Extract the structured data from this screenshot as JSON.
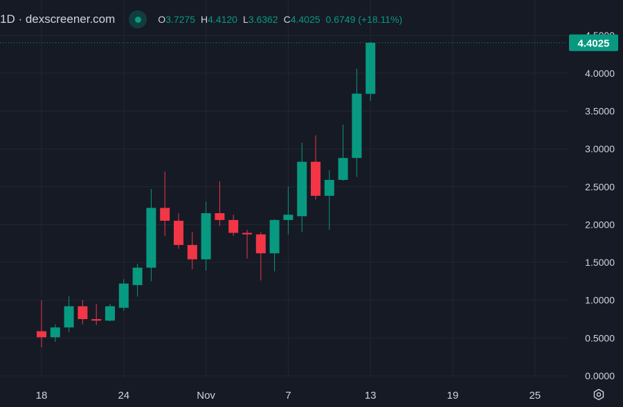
{
  "legend": {
    "title": "1D · dexscreener.com",
    "o_label": "O",
    "o_value": "3.7275",
    "h_label": "H",
    "h_value": "4.4120",
    "l_label": "L",
    "l_value": "3.6362",
    "c_label": "C",
    "c_value": "4.4025",
    "change": "0.6749 (+18.11%)"
  },
  "colors": {
    "background": "#161a25",
    "up": "#089981",
    "down": "#f23645",
    "grid": "#232733",
    "text": "#d1d4dc"
  },
  "chart_data": {
    "type": "candlestick",
    "x_ticks": [
      "18",
      "24",
      "Nov",
      "7",
      "13",
      "19",
      "25"
    ],
    "y_ticks": [
      "0.0000",
      "0.5000",
      "1.0000",
      "1.5000",
      "2.0000",
      "2.5000",
      "3.0000",
      "3.5000",
      "4.0000",
      "4.5000"
    ],
    "ylim": [
      0,
      4.5
    ],
    "last_price": "4.4025",
    "grid": true,
    "candles": [
      {
        "o": 0.59,
        "h": 1.0,
        "l": 0.38,
        "c": 0.51
      },
      {
        "o": 0.51,
        "h": 0.68,
        "l": 0.45,
        "c": 0.64
      },
      {
        "o": 0.64,
        "h": 1.05,
        "l": 0.58,
        "c": 0.92
      },
      {
        "o": 0.92,
        "h": 1.0,
        "l": 0.68,
        "c": 0.75
      },
      {
        "o": 0.75,
        "h": 0.95,
        "l": 0.67,
        "c": 0.73
      },
      {
        "o": 0.73,
        "h": 0.95,
        "l": 0.72,
        "c": 0.92
      },
      {
        "o": 0.9,
        "h": 1.28,
        "l": 0.86,
        "c": 1.22
      },
      {
        "o": 1.2,
        "h": 1.48,
        "l": 1.05,
        "c": 1.43
      },
      {
        "o": 1.43,
        "h": 2.47,
        "l": 1.25,
        "c": 2.22
      },
      {
        "o": 2.22,
        "h": 2.7,
        "l": 1.85,
        "c": 2.05
      },
      {
        "o": 2.05,
        "h": 2.15,
        "l": 1.68,
        "c": 1.73
      },
      {
        "o": 1.73,
        "h": 1.9,
        "l": 1.41,
        "c": 1.54
      },
      {
        "o": 1.54,
        "h": 2.3,
        "l": 1.39,
        "c": 2.15
      },
      {
        "o": 2.15,
        "h": 2.57,
        "l": 1.98,
        "c": 2.06
      },
      {
        "o": 2.06,
        "h": 2.13,
        "l": 1.85,
        "c": 1.89
      },
      {
        "o": 1.89,
        "h": 1.93,
        "l": 1.55,
        "c": 1.87
      },
      {
        "o": 1.87,
        "h": 1.9,
        "l": 1.26,
        "c": 1.62
      },
      {
        "o": 1.62,
        "h": 2.07,
        "l": 1.38,
        "c": 2.06
      },
      {
        "o": 2.06,
        "h": 2.5,
        "l": 1.87,
        "c": 2.13
      },
      {
        "o": 2.11,
        "h": 3.08,
        "l": 1.9,
        "c": 2.83
      },
      {
        "o": 2.83,
        "h": 3.18,
        "l": 2.33,
        "c": 2.38
      },
      {
        "o": 2.38,
        "h": 2.72,
        "l": 1.93,
        "c": 2.59
      },
      {
        "o": 2.59,
        "h": 3.32,
        "l": 2.58,
        "c": 2.88
      },
      {
        "o": 2.88,
        "h": 4.06,
        "l": 2.63,
        "c": 3.73
      },
      {
        "o": 3.7275,
        "h": 4.412,
        "l": 3.6362,
        "c": 4.4025
      }
    ]
  }
}
